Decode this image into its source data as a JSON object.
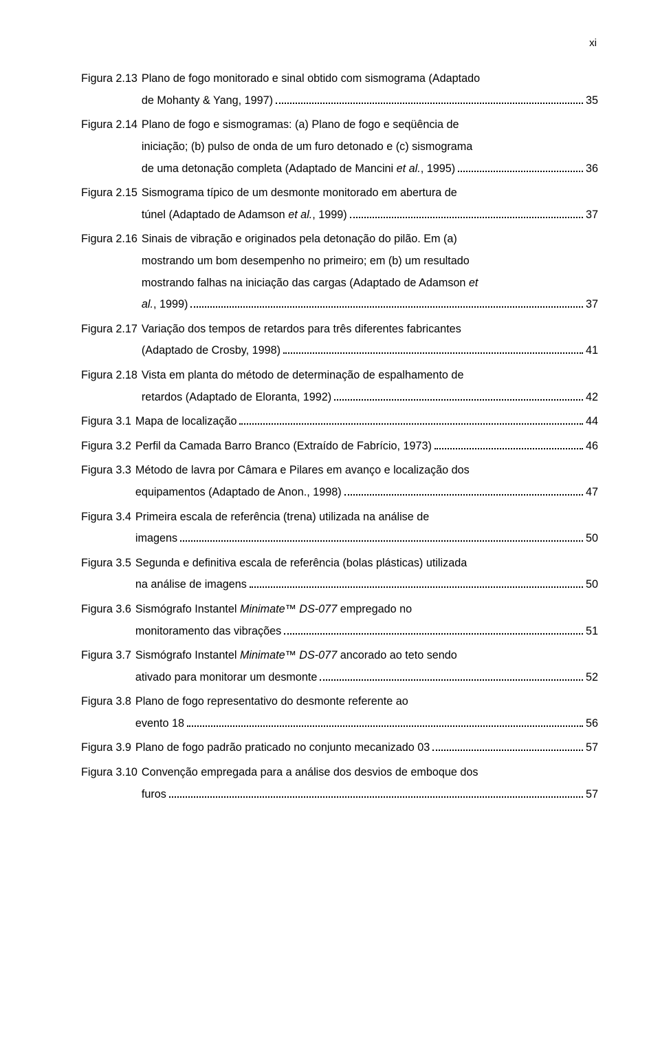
{
  "page_number_roman": "xi",
  "entries": [
    {
      "label": "Figura 2.13",
      "lines": [
        {
          "text": "Plano de fogo monitorado e sinal obtido com sismograma (Adaptado"
        },
        {
          "text": "de Mohanty & Yang, 1997)",
          "page": "35"
        }
      ]
    },
    {
      "label": "Figura 2.14",
      "lines": [
        {
          "text": "Plano de fogo e sismogramas: (a) Plano de fogo e seqüência de"
        },
        {
          "text": "iniciação; (b) pulso de onda de um furo detonado e (c) sismograma"
        },
        {
          "text": "de uma detonação completa (Adaptado de Mancini ",
          "italic_tail": "et al.",
          "tail2": ", 1995)",
          "page": "36"
        }
      ]
    },
    {
      "label": "Figura 2.15",
      "lines": [
        {
          "text": "Sismograma típico de um desmonte monitorado em abertura de"
        },
        {
          "text": "túnel (Adaptado de Adamson ",
          "italic_tail": "et al.",
          "tail2": ", 1999)",
          "page": "37"
        }
      ]
    },
    {
      "label": "Figura 2.16",
      "lines": [
        {
          "text": "Sinais de vibração e originados pela detonação do pilão. Em (a)"
        },
        {
          "text": "mostrando um bom desempenho no primeiro; em (b) um resultado"
        },
        {
          "text": "mostrando falhas na iniciação das cargas (Adaptado de Adamson ",
          "italic_tail": "et"
        },
        {
          "italic_lead": "al.",
          "text": ", 1999)",
          "page": "37"
        }
      ]
    },
    {
      "label": "Figura 2.17",
      "lines": [
        {
          "text": "Variação dos tempos de retardos para três diferentes fabricantes"
        },
        {
          "text": "(Adaptado de Crosby, 1998) ",
          "page": "41"
        }
      ]
    },
    {
      "label": "Figura 2.18",
      "lines": [
        {
          "text": "Vista em planta do método de determinação de espalhamento de"
        },
        {
          "text": "retardos (Adaptado de Eloranta, 1992)",
          "page": "42"
        }
      ]
    },
    {
      "label": "Figura 3.1",
      "lines": [
        {
          "text": "Mapa de localização",
          "page": "44"
        }
      ]
    },
    {
      "label": "Figura 3.2",
      "lines": [
        {
          "text": "Perfil da Camada Barro Branco (Extraído de Fabrício, 1973) ",
          "page": "46"
        }
      ]
    },
    {
      "label": "Figura 3.3",
      "lines": [
        {
          "text": "Método de lavra por Câmara e Pilares em avanço e localização dos"
        },
        {
          "text": "equipamentos (Adaptado de Anon., 1998)",
          "page": "47"
        }
      ]
    },
    {
      "label": "Figura 3.4",
      "lines": [
        {
          "text": "Primeira escala de referência (trena) utilizada na análise de"
        },
        {
          "text": "imagens",
          "page": "50"
        }
      ]
    },
    {
      "label": "Figura 3.5",
      "lines": [
        {
          "text": "Segunda e definitiva escala de referência (bolas plásticas) utilizada"
        },
        {
          "text": "na análise de imagens ",
          "page": "50"
        }
      ]
    },
    {
      "label": "Figura 3.6",
      "lines": [
        {
          "text": "Sismógrafo Instantel ",
          "italic_tail": "Minimate™ DS-077",
          "tail2": " empregado no"
        },
        {
          "text": "monitoramento das vibrações",
          "page": "51"
        }
      ]
    },
    {
      "label": "Figura 3.7",
      "lines": [
        {
          "text": "Sismógrafo Instantel ",
          "italic_tail": "Minimate™ DS-077",
          "tail2": " ancorado ao teto sendo"
        },
        {
          "text": "ativado para monitorar um desmonte",
          "page": "52"
        }
      ]
    },
    {
      "label": "Figura 3.8",
      "lines": [
        {
          "text": "Plano de fogo representativo do desmonte referente ao"
        },
        {
          "text": "evento 18",
          "page": "56"
        }
      ]
    },
    {
      "label": "Figura 3.9",
      "lines": [
        {
          "text": "Plano de fogo padrão praticado no conjunto mecanizado 03 ",
          "page": "57"
        }
      ]
    },
    {
      "label": "Figura 3.10",
      "lines": [
        {
          "text": "Convenção empregada para a análise dos desvios de emboque dos"
        },
        {
          "text": "furos",
          "page": "57"
        }
      ]
    }
  ]
}
